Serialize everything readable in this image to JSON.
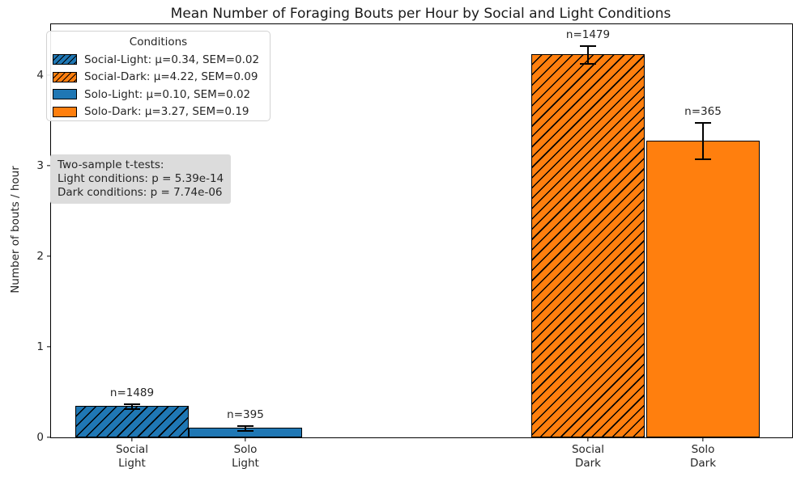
{
  "chart_data": {
    "type": "bar",
    "title": "Mean Number of Foraging Bouts per Hour by Social and Light Conditions",
    "xlabel": "",
    "ylabel": "Number of bouts / hour",
    "ylim": [
      0,
      4.56
    ],
    "yticks": [
      0,
      1,
      2,
      3,
      4
    ],
    "grid": false,
    "error_bars": "±1 SEM with caps",
    "legend_position": "upper left",
    "categories": [
      "Social Light",
      "Solo Light",
      "Social Dark",
      "Solo Dark"
    ],
    "values": [
      0.34,
      0.1,
      4.22,
      3.27
    ],
    "bars": [
      {
        "key": "social-light",
        "tick_line1": "Social",
        "tick_line2": "Light",
        "mean": 0.34,
        "sem": 0.02,
        "n": 1489,
        "n_label": "n=1489",
        "color_key": "blue",
        "hatched": true
      },
      {
        "key": "solo-light",
        "tick_line1": "Solo",
        "tick_line2": "Light",
        "mean": 0.1,
        "sem": 0.02,
        "n": 395,
        "n_label": "n=395",
        "color_key": "blue",
        "hatched": false
      },
      {
        "key": "social-dark",
        "tick_line1": "Social",
        "tick_line2": "Dark",
        "mean": 4.22,
        "sem": 0.09,
        "n": 1479,
        "n_label": "n=1479",
        "color_key": "orange",
        "hatched": true
      },
      {
        "key": "solo-dark",
        "tick_line1": "Solo",
        "tick_line2": "Dark",
        "mean": 3.27,
        "sem": 0.19,
        "n": 365,
        "n_label": "n=365",
        "color_key": "orange",
        "hatched": false
      }
    ]
  },
  "colors": {
    "blue": "#1f77b4",
    "orange": "#ff7f0e",
    "bar_edge": "#000000",
    "annotation_bg": "#dcdcdc",
    "legend_border": "#d2d2d2"
  },
  "legend": {
    "title": "Conditions",
    "entries": [
      {
        "label": "Social-Light: μ=0.34, SEM=0.02",
        "color_key": "blue",
        "hatched": true
      },
      {
        "label": "Social-Dark: μ=4.22, SEM=0.09",
        "color_key": "orange",
        "hatched": true
      },
      {
        "label": "Solo-Light: μ=0.10, SEM=0.02",
        "color_key": "blue",
        "hatched": false
      },
      {
        "label": "Solo-Dark: μ=3.27, SEM=0.19",
        "color_key": "orange",
        "hatched": false
      }
    ]
  },
  "annotation": {
    "lines": [
      "Two-sample t-tests:",
      "Light conditions: p = 5.39e-14",
      "Dark conditions: p = 7.74e-06"
    ]
  }
}
